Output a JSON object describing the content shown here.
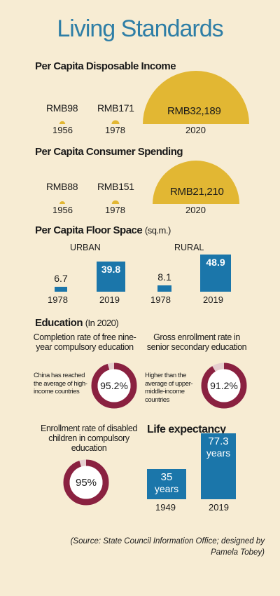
{
  "title": "Living Standards",
  "colors": {
    "background": "#f7ecd3",
    "title": "#2e7ea6",
    "semicircle": "#e2b733",
    "bar": "#1b76aa",
    "ring": "#8a2140",
    "ring_track": "#e6cfcf"
  },
  "sections": {
    "income": "Per Capita Disposable Income",
    "spending": "Per Capita Consumer Spending",
    "floor": "Per Capita Floor Space",
    "floor_unit": "(sq.m.)",
    "education": "Education",
    "education_note": "(In 2020)",
    "life": "Life expectancy"
  },
  "floor_groups": {
    "urban": "URBAN",
    "rural": "RURAL"
  },
  "education": {
    "completion_caption": "Completion rate of free nine-year compulsory education",
    "completion_note": "China has reached the average of high-income countries",
    "gross_caption": "Gross enrollment rate in senior secondary education",
    "gross_note": "Higher than the average of upper-middle-income countries",
    "disabled_caption": "Enrollment rate of disabled children in compulsory education"
  },
  "source": "(Source: State Council Information Office; designed by Pamela Tobey)",
  "chart_data": [
    {
      "type": "semicircle",
      "title": "Per Capita Disposable Income",
      "categories": [
        "1956",
        "1978",
        "2020"
      ],
      "values": [
        98,
        171,
        32189
      ],
      "labels": [
        "RMB98",
        "RMB171",
        "RMB32,189"
      ]
    },
    {
      "type": "semicircle",
      "title": "Per Capita Consumer Spending",
      "categories": [
        "1956",
        "1978",
        "2020"
      ],
      "values": [
        88,
        151,
        21210
      ],
      "labels": [
        "RMB88",
        "RMB151",
        "RMB21,210"
      ]
    },
    {
      "type": "bar",
      "title": "Per Capita Floor Space (sq.m.)",
      "series": [
        {
          "name": "URBAN",
          "categories": [
            "1978",
            "2019"
          ],
          "values": [
            6.7,
            39.8
          ],
          "labels": [
            "6.7",
            "39.8"
          ]
        },
        {
          "name": "RURAL",
          "categories": [
            "1978",
            "2019"
          ],
          "values": [
            8.1,
            48.9
          ],
          "labels": [
            "8.1",
            "48.9"
          ]
        }
      ]
    },
    {
      "type": "donut",
      "title": "Education (In 2020)",
      "items": [
        {
          "name": "Completion rate of free nine-year compulsory education",
          "value": 95.2,
          "label": "95.2%"
        },
        {
          "name": "Gross enrollment rate in senior secondary education",
          "value": 91.2,
          "label": "91.2%"
        },
        {
          "name": "Enrollment rate of disabled children in compulsory education",
          "value": 95,
          "label": "95%"
        }
      ]
    },
    {
      "type": "bar",
      "title": "Life expectancy",
      "categories": [
        "1949",
        "2019"
      ],
      "values": [
        35,
        77.3
      ],
      "labels": [
        "35",
        "77.3"
      ],
      "unit": "years"
    }
  ]
}
